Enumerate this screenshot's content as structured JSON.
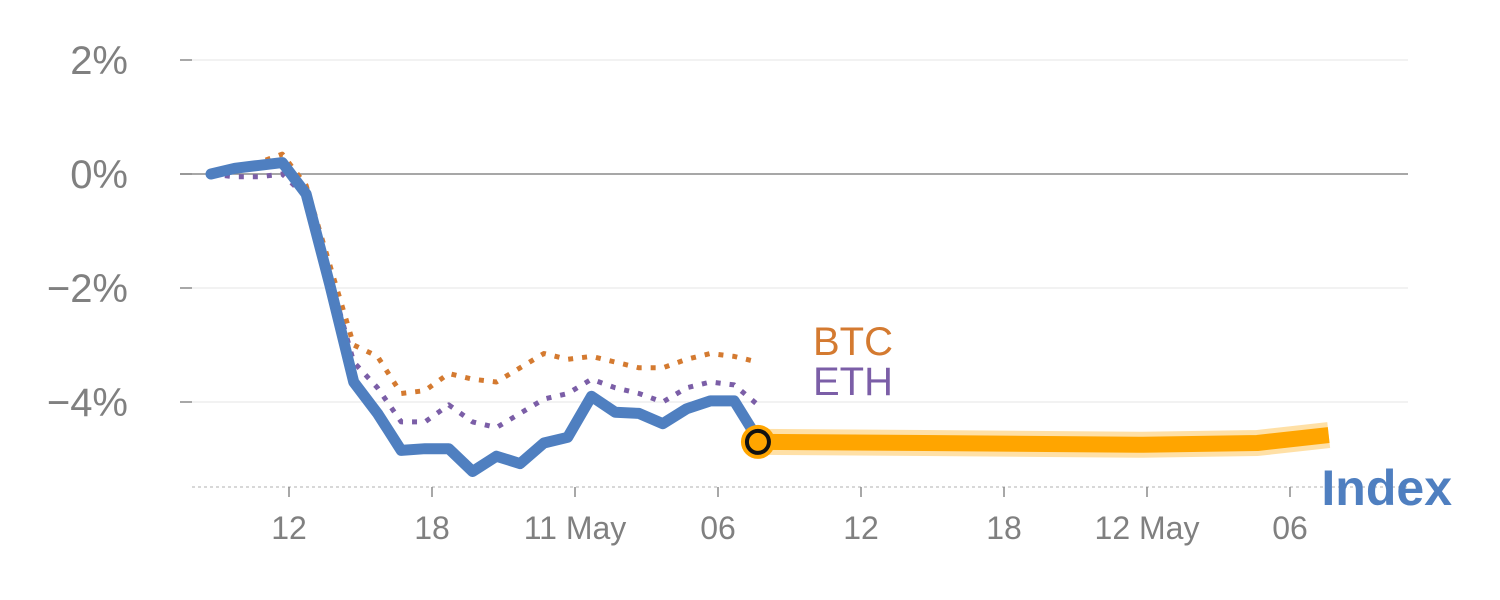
{
  "chart_data": {
    "type": "line",
    "title": "",
    "xlabel": "",
    "ylabel": "",
    "ylim": [
      -5.5,
      2.2
    ],
    "y_ticks": [
      {
        "value": 2,
        "label": "2%"
      },
      {
        "value": 0,
        "label": "0%"
      },
      {
        "value": -2,
        "label": "−2%"
      },
      {
        "value": -4,
        "label": "−4%"
      }
    ],
    "x_ticks": [
      "12",
      "18",
      "11 May",
      "06",
      "12",
      "18",
      "12 May",
      "06"
    ],
    "grid": true,
    "zero_line": true,
    "series": [
      {
        "name": "Index",
        "color": "#4f7fc0",
        "style": "solid",
        "x": [
          0,
          1,
          2,
          3,
          4,
          5,
          6,
          7,
          8,
          9,
          10,
          11,
          12,
          13,
          14,
          15,
          16,
          17,
          18,
          19,
          20,
          21,
          22,
          23
        ],
        "values": [
          0.0,
          0.1,
          0.15,
          0.2,
          -0.35,
          -1.95,
          -3.65,
          -4.2,
          -4.85,
          -4.82,
          -4.82,
          -5.22,
          -4.95,
          -5.08,
          -4.72,
          -4.62,
          -3.9,
          -4.18,
          -4.2,
          -4.38,
          -4.12,
          -3.98,
          -3.98,
          -4.65
        ]
      },
      {
        "name": "BTC",
        "color": "#d47a30",
        "style": "dotted",
        "x": [
          0,
          1,
          2,
          3,
          4,
          5,
          6,
          7,
          8,
          9,
          10,
          11,
          12,
          13,
          14,
          15,
          16,
          17,
          18,
          19,
          20,
          21,
          22,
          23
        ],
        "values": [
          0.05,
          0.1,
          0.2,
          0.35,
          -0.2,
          -1.6,
          -3.0,
          -3.2,
          -3.85,
          -3.8,
          -3.5,
          -3.6,
          -3.65,
          -3.4,
          -3.15,
          -3.25,
          -3.2,
          -3.3,
          -3.4,
          -3.4,
          -3.25,
          -3.15,
          -3.2,
          -3.3
        ]
      },
      {
        "name": "ETH",
        "color": "#7b5ea7",
        "style": "dotted",
        "x": [
          0,
          1,
          2,
          3,
          4,
          5,
          6,
          7,
          8,
          9,
          10,
          11,
          12,
          13,
          14,
          15,
          16,
          17,
          18,
          19,
          20,
          21,
          22,
          23
        ],
        "values": [
          0.0,
          -0.05,
          -0.05,
          0.0,
          -0.4,
          -1.8,
          -3.3,
          -3.75,
          -4.35,
          -4.35,
          -4.05,
          -4.35,
          -4.45,
          -4.2,
          -3.95,
          -3.85,
          -3.6,
          -3.75,
          -3.85,
          -4.0,
          -3.75,
          -3.65,
          -3.7,
          -4.05
        ]
      },
      {
        "name": "",
        "color": "#ffa500",
        "style": "forecast",
        "x": [
          23,
          30,
          39,
          44,
          47
        ],
        "values": [
          -4.7,
          -4.72,
          -4.75,
          -4.72,
          -4.58
        ]
      }
    ]
  },
  "labels": {
    "btc": "BTC",
    "eth": "ETH",
    "index": "Index"
  }
}
